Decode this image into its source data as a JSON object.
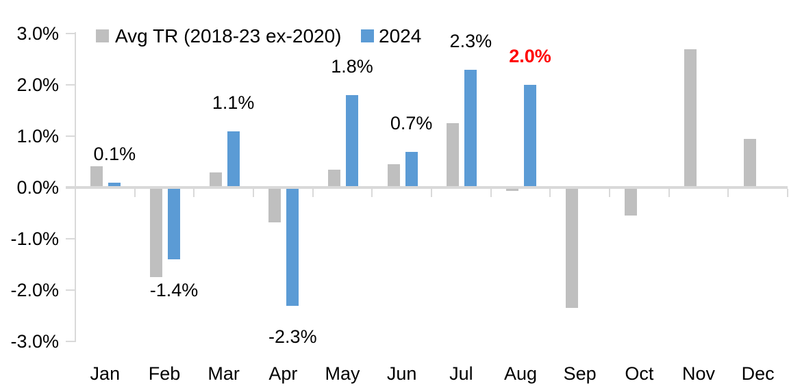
{
  "chart_data": {
    "type": "bar",
    "title": "",
    "categories": [
      "Jan",
      "Feb",
      "Mar",
      "Apr",
      "May",
      "Jun",
      "Jul",
      "Aug",
      "Sep",
      "Oct",
      "Nov",
      "Dec"
    ],
    "series": [
      {
        "name": "Avg TR (2018-23 ex-2020)",
        "color": "#BFBFBF",
        "values": [
          0.42,
          -1.75,
          0.3,
          -0.68,
          0.35,
          0.45,
          1.25,
          -0.07,
          -2.35,
          -0.55,
          2.7,
          0.95
        ]
      },
      {
        "name": "2024",
        "color": "#5B9BD5",
        "values": [
          0.1,
          -1.4,
          1.1,
          -2.3,
          1.8,
          0.7,
          2.3,
          2.0,
          null,
          null,
          null,
          null
        ]
      }
    ],
    "data_labels": [
      {
        "category": "Jan",
        "text": "0.1%",
        "color": "#000000",
        "bold": false
      },
      {
        "category": "Feb",
        "text": "-1.4%",
        "color": "#000000",
        "bold": false
      },
      {
        "category": "Mar",
        "text": "1.1%",
        "color": "#000000",
        "bold": false
      },
      {
        "category": "Apr",
        "text": "-2.3%",
        "color": "#000000",
        "bold": false
      },
      {
        "category": "May",
        "text": "1.8%",
        "color": "#000000",
        "bold": false
      },
      {
        "category": "Jun",
        "text": "0.7%",
        "color": "#000000",
        "bold": false
      },
      {
        "category": "Jul",
        "text": "2.3%",
        "color": "#000000",
        "bold": false
      },
      {
        "category": "Aug",
        "text": "2.0%",
        "color": "#FF0000",
        "bold": true
      }
    ],
    "y_axis": {
      "tick_labels": [
        "3.0%",
        "2.0%",
        "1.0%",
        "0.0%",
        "-1.0%",
        "-2.0%",
        "-3.0%"
      ],
      "max": 3.0,
      "min": -3.0,
      "step": 1.0,
      "grid": false
    },
    "legend": {
      "position": "top"
    },
    "colors": {
      "axis": "#D9D9D9",
      "text": "#000000",
      "background": "#FFFFFF"
    }
  }
}
